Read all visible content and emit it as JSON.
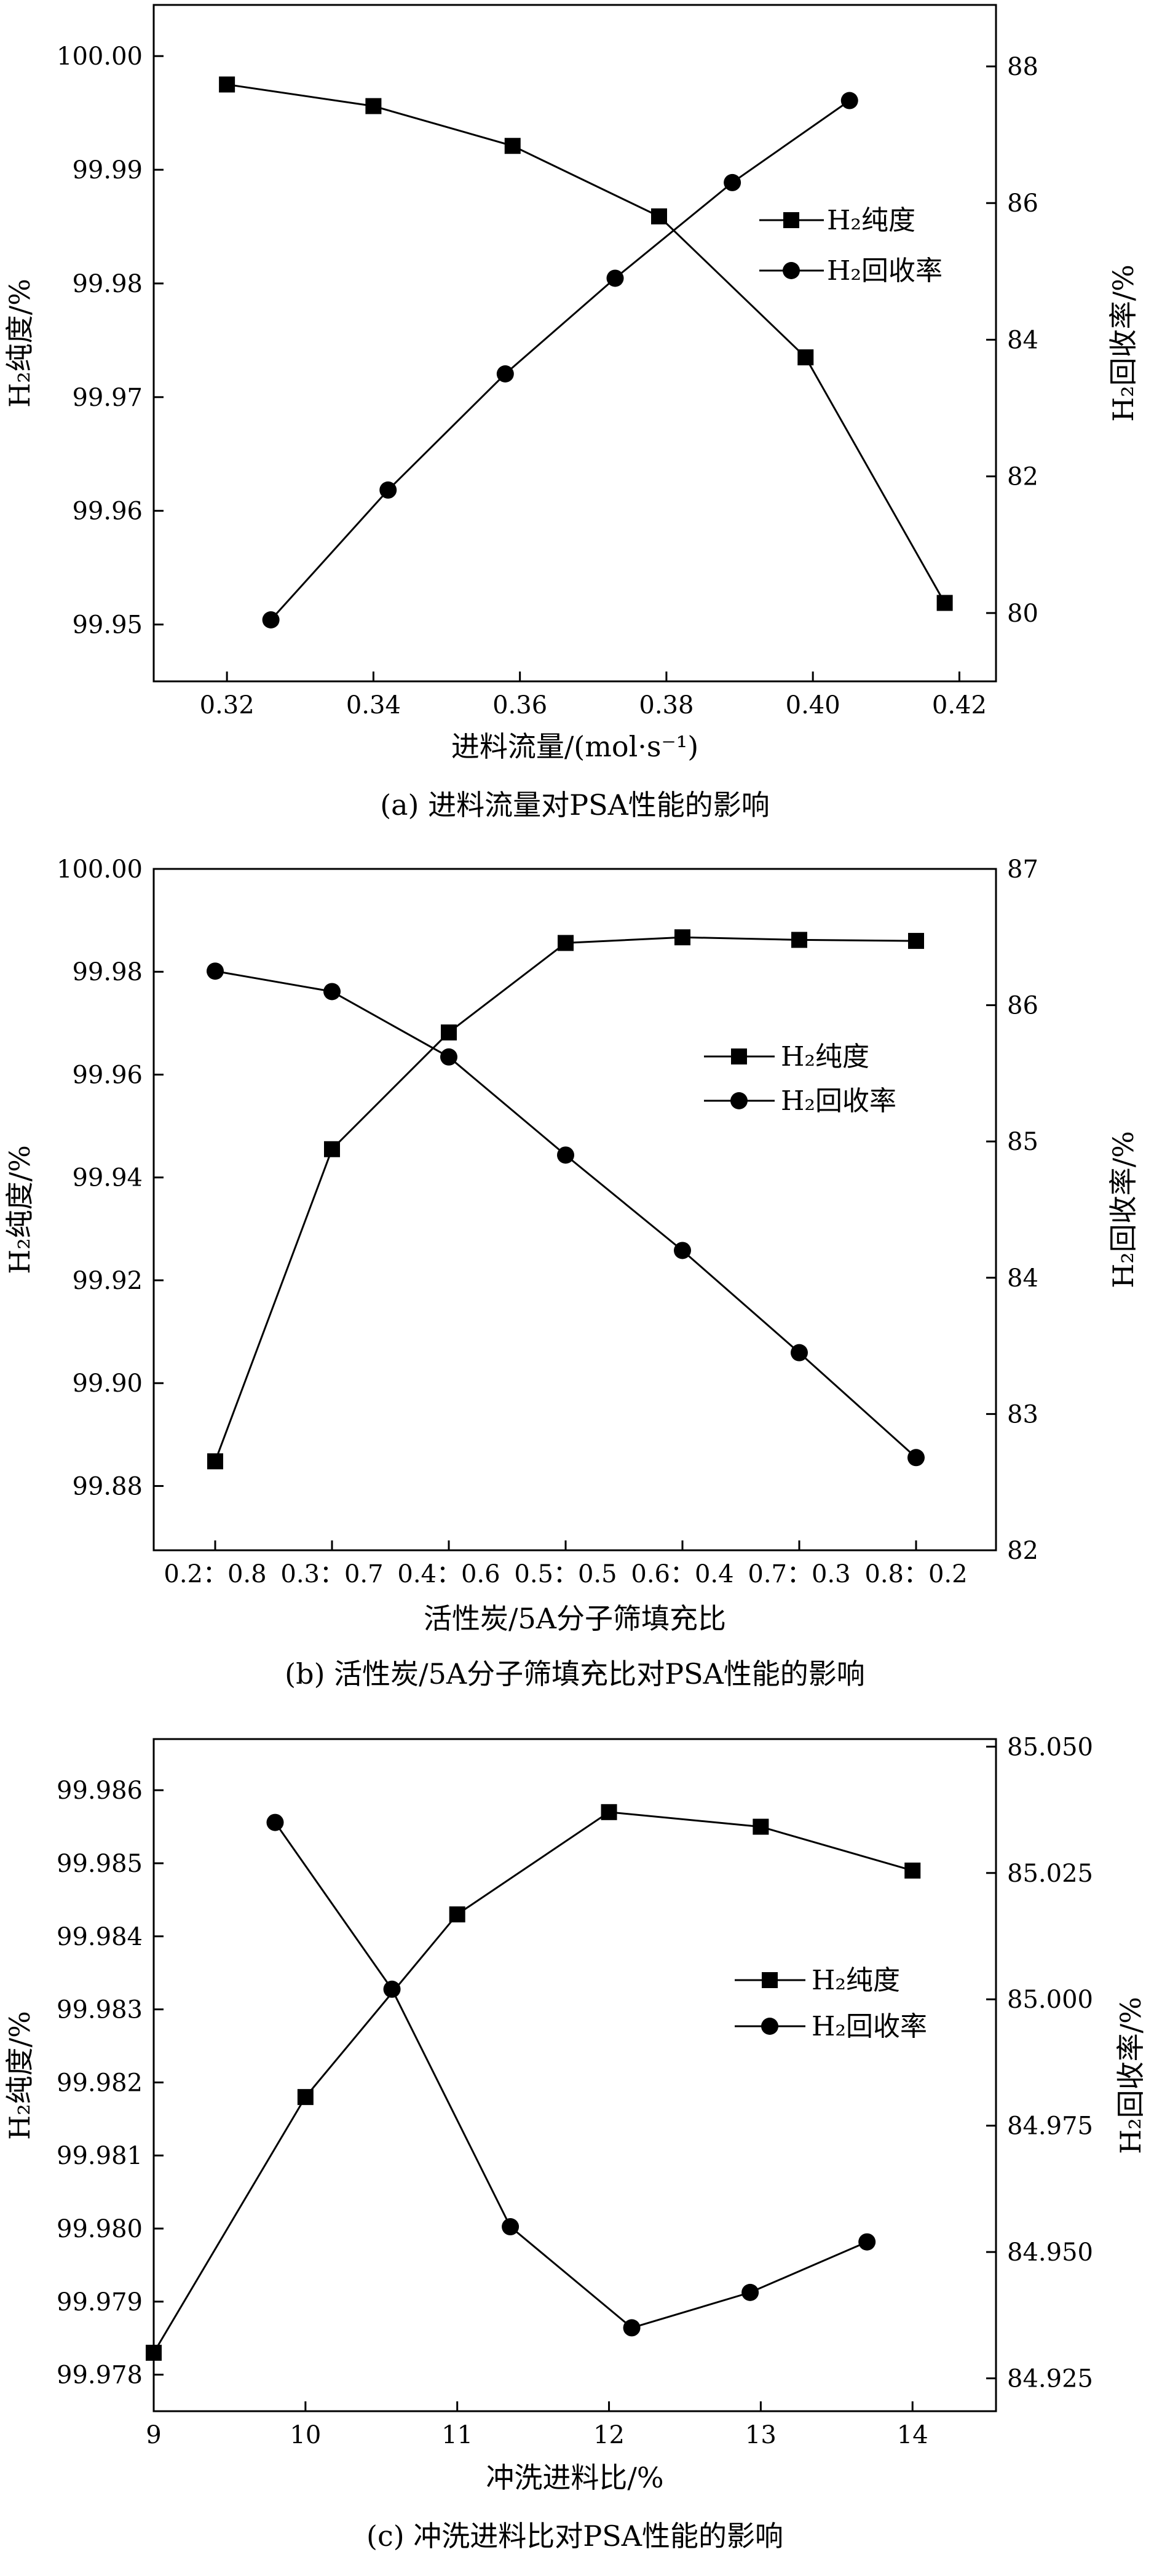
{
  "chart_data": [
    {
      "type": "line",
      "caption": "(a) 进料流量对PSA性能的影响",
      "xlabel": "进料流量/(mol·s⁻¹)",
      "ylabel_left": "H₂纯度/%",
      "ylabel_right": "H₂回收率/%",
      "xlim": [
        0.31,
        0.425
      ],
      "ylim_left": [
        99.945,
        100.0045
      ],
      "ylim_right": [
        79.0,
        88.9
      ],
      "x_ticks": [
        "0.32",
        "0.34",
        "0.36",
        "0.38",
        "0.40",
        "0.42"
      ],
      "y_ticks_left": [
        "99.95",
        "99.96",
        "99.97",
        "99.98",
        "99.99",
        "100.00"
      ],
      "y_ticks_right": [
        "80",
        "82",
        "84",
        "86",
        "88"
      ],
      "legend_position": "right",
      "series": [
        {
          "name": "H₂纯度",
          "axis": "left",
          "marker": "square",
          "x": [
            0.32,
            0.34,
            0.359,
            0.379,
            0.399,
            0.418
          ],
          "y": [
            99.9975,
            99.9956,
            99.9921,
            99.9859,
            99.9735,
            99.9519
          ]
        },
        {
          "name": "H₂回收率",
          "axis": "right",
          "marker": "circle",
          "x": [
            0.326,
            0.342,
            0.358,
            0.373,
            0.389,
            0.405
          ],
          "y": [
            79.9,
            81.8,
            83.5,
            84.9,
            86.3,
            87.5
          ]
        }
      ]
    },
    {
      "type": "line",
      "caption": "(b) 活性炭/5A分子筛填充比对PSA性能的影响",
      "xlabel": "活性炭/5A分子筛填充比",
      "ylabel_left": "H₂纯度/%",
      "ylabel_right": "H₂回收率/%",
      "categories": [
        "0.2：0.8",
        "0.3：0.7",
        "0.4：0.6",
        "0.5：0.5",
        "0.6：0.4",
        "0.7：0.3",
        "0.8：0.2"
      ],
      "ylim_left": [
        99.8675,
        100.0
      ],
      "ylim_right": [
        82.0,
        87.0
      ],
      "y_ticks_left": [
        "99.88",
        "99.90",
        "99.92",
        "99.94",
        "99.96",
        "99.98",
        "100.00"
      ],
      "y_ticks_right": [
        "82",
        "83",
        "84",
        "85",
        "86",
        "87"
      ],
      "legend_position": "right",
      "series": [
        {
          "name": "H₂纯度",
          "axis": "left",
          "marker": "square",
          "values": [
            99.8848,
            99.9455,
            99.9682,
            99.9856,
            99.9867,
            99.9862,
            99.986
          ]
        },
        {
          "name": "H₂回收率",
          "axis": "right",
          "marker": "circle",
          "values": [
            86.25,
            86.1,
            85.62,
            84.9,
            84.2,
            83.45,
            82.68
          ]
        }
      ]
    },
    {
      "type": "line",
      "caption": "(c) 冲洗进料比对PSA性能的影响",
      "xlabel": "冲洗进料比/%",
      "ylabel_left": "H₂纯度/%",
      "ylabel_right": "H₂回收率/%",
      "xlim": [
        9,
        14.55
      ],
      "ylim_left": [
        99.9775,
        99.9867
      ],
      "ylim_right": [
        84.9185,
        85.0515
      ],
      "x_ticks": [
        "9",
        "10",
        "11",
        "12",
        "13",
        "14"
      ],
      "y_ticks_left": [
        "99.978",
        "99.979",
        "99.980",
        "99.981",
        "99.982",
        "99.983",
        "99.984",
        "99.985",
        "99.986"
      ],
      "y_ticks_right": [
        "84.925",
        "84.950",
        "84.975",
        "85.000",
        "85.025",
        "85.050"
      ],
      "legend_position": "right",
      "series": [
        {
          "name": "H₂纯度",
          "axis": "left",
          "marker": "square",
          "x": [
            9.0,
            10.0,
            11.0,
            12.0,
            13.0,
            14.0
          ],
          "y": [
            99.9783,
            99.9818,
            99.9843,
            99.9857,
            99.9855,
            99.9849
          ]
        },
        {
          "name": "H₂回收率",
          "axis": "right",
          "marker": "circle",
          "x": [
            9.8,
            10.57,
            11.35,
            12.15,
            12.93,
            13.7
          ],
          "y": [
            85.035,
            85.002,
            84.955,
            84.935,
            84.942,
            84.952
          ]
        }
      ]
    }
  ]
}
